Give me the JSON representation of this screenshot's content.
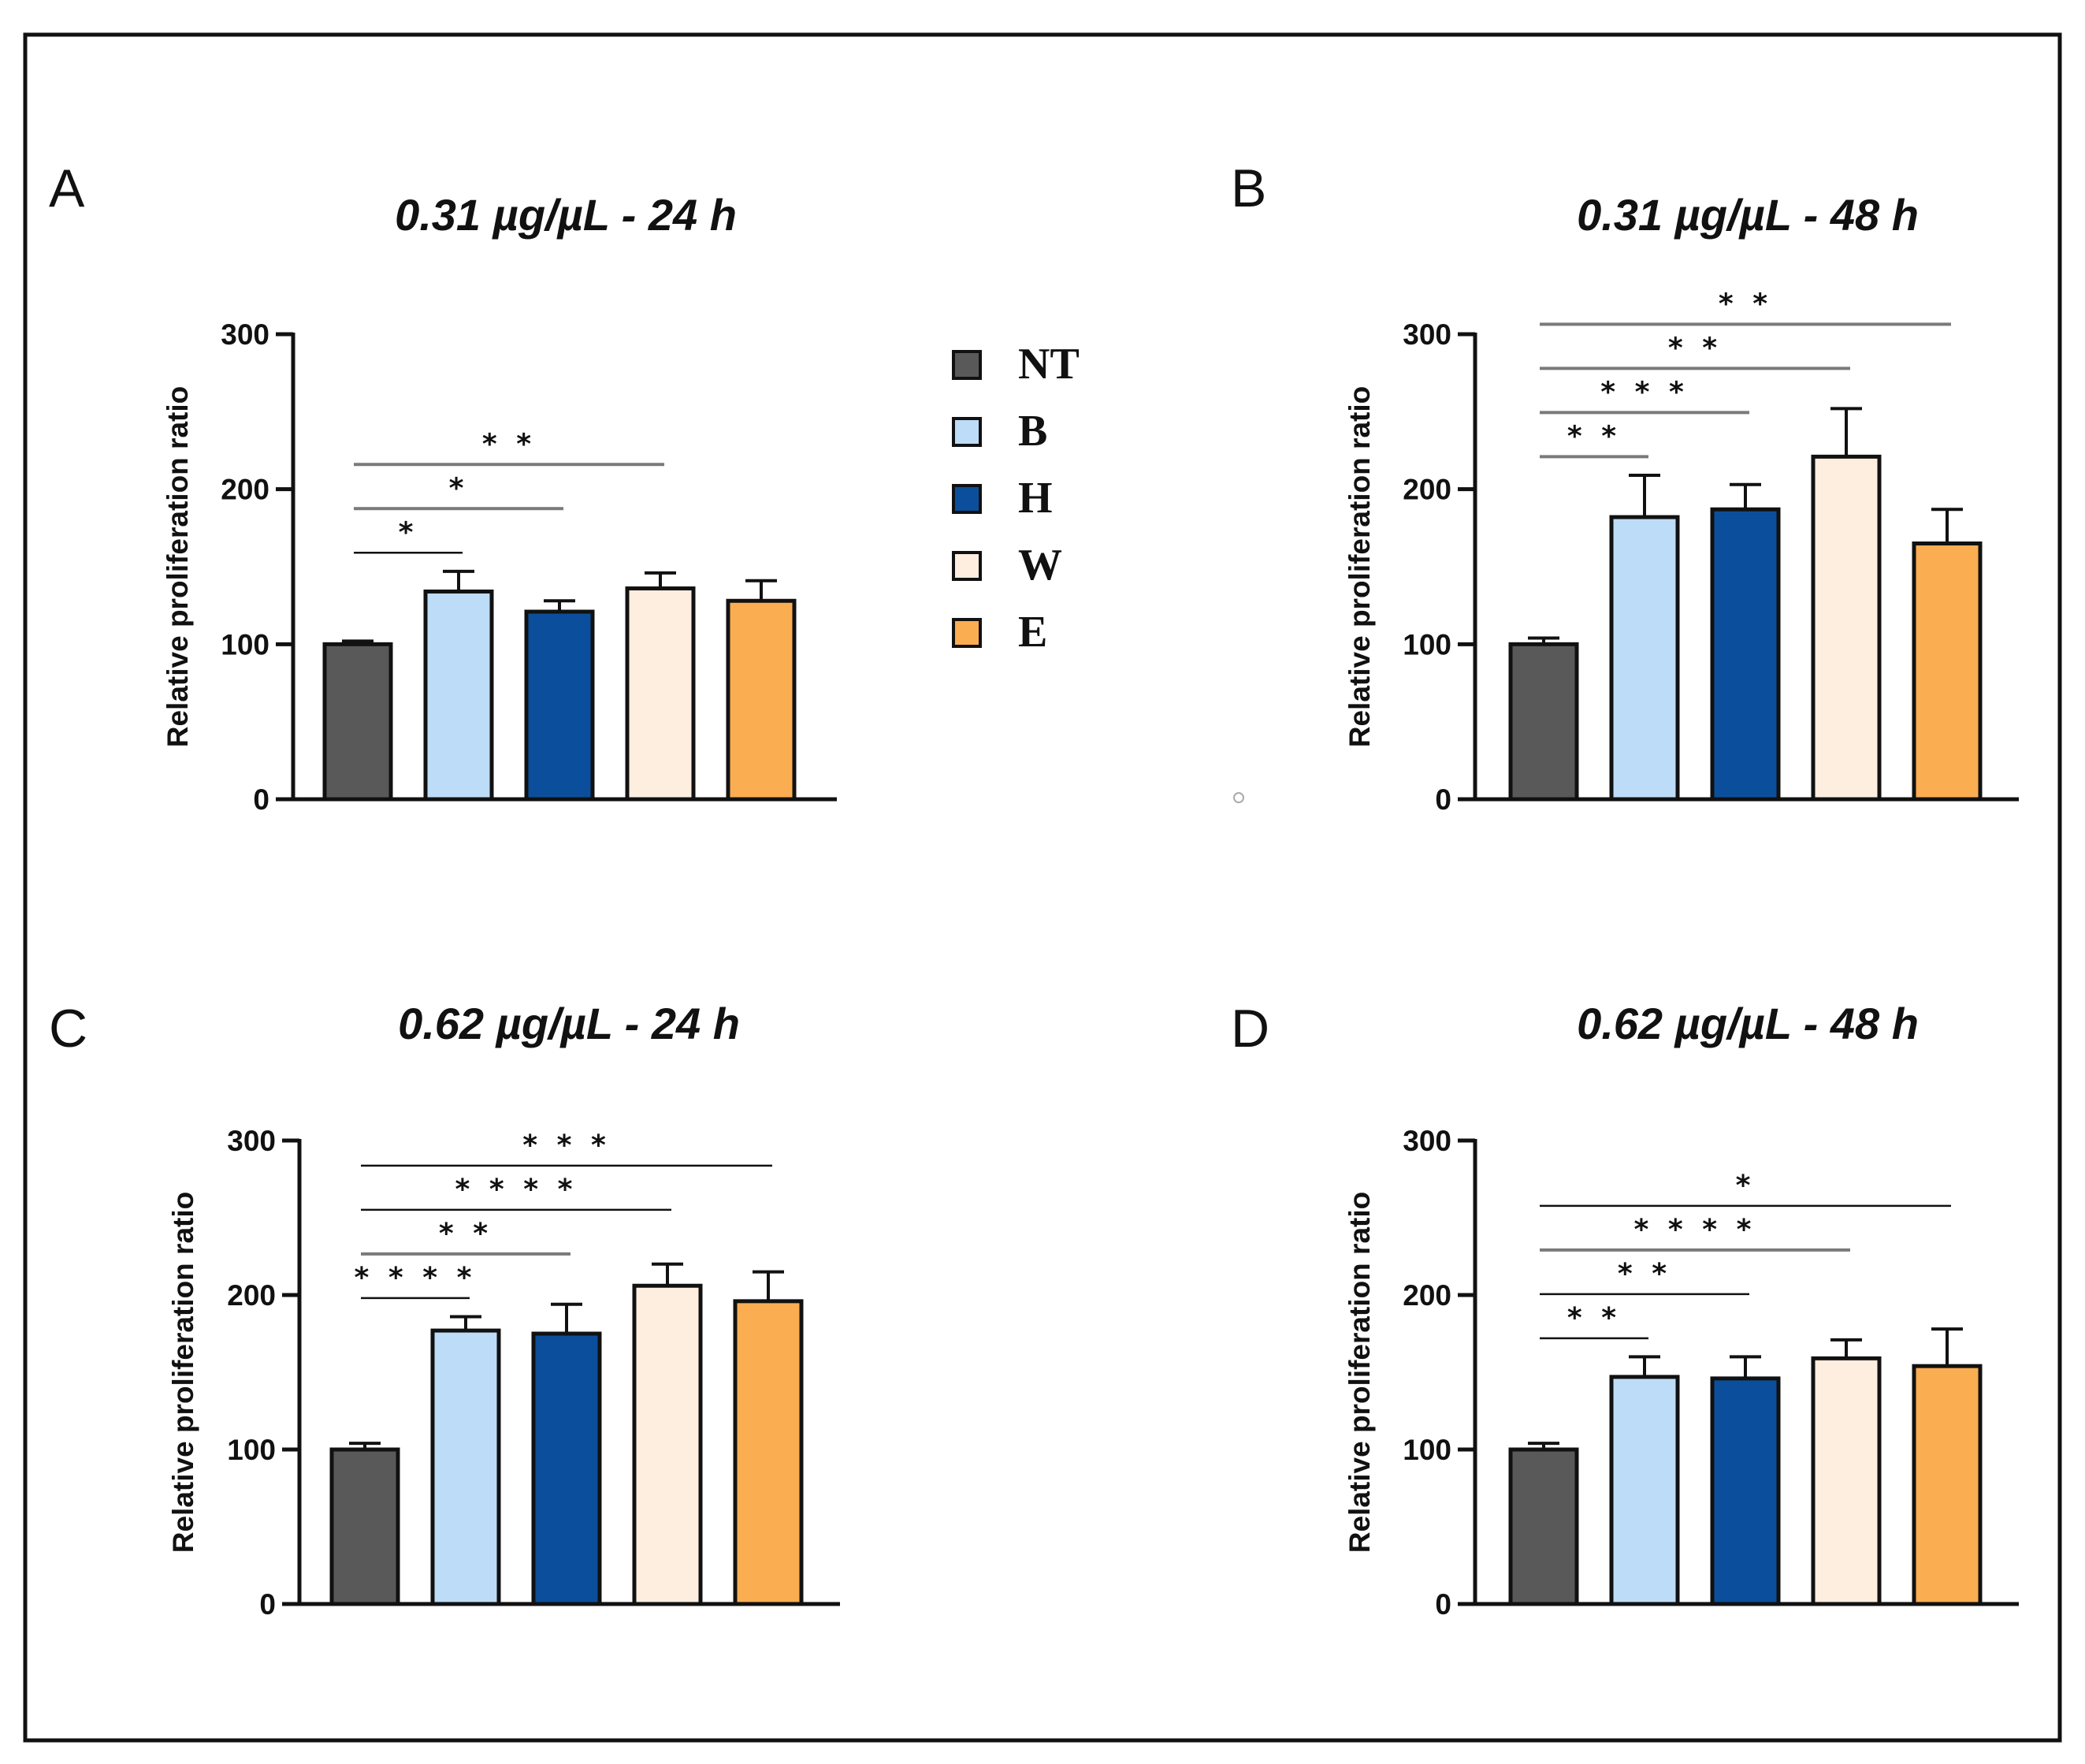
{
  "figure": {
    "legend": [
      {
        "label": "NT",
        "color": "#595959"
      },
      {
        "label": "B",
        "color": "#bddcf7"
      },
      {
        "label": "H",
        "color": "#0b4f9c"
      },
      {
        "label": "W",
        "color": "#fdeee0"
      },
      {
        "label": "E",
        "color": "#fbad52"
      }
    ]
  },
  "chart_data": [
    {
      "panel": "A",
      "type": "bar",
      "title": "0.31 µg/µL - 24 h",
      "ylabel": "Relative proliferation ratio",
      "categories": [
        "NT",
        "B",
        "H",
        "W",
        "E"
      ],
      "values": [
        100,
        134,
        121,
        136,
        128
      ],
      "errors": [
        2,
        13,
        7,
        10,
        13
      ],
      "ylim": [
        0,
        300
      ],
      "yticks": [
        "0",
        "100",
        "200",
        "300"
      ],
      "significance": [
        {
          "from": "NT",
          "to": "B",
          "label": "*",
          "gray": false
        },
        {
          "from": "NT",
          "to": "H",
          "label": "*",
          "gray": true
        },
        {
          "from": "NT",
          "to": "W",
          "label": "**",
          "gray": true
        }
      ]
    },
    {
      "panel": "B",
      "type": "bar",
      "title": "0.31 µg/µL - 48 h",
      "ylabel": "Relative proliferation ratio",
      "categories": [
        "NT",
        "B",
        "H",
        "W",
        "E"
      ],
      "values": [
        100,
        182,
        187,
        221,
        165
      ],
      "errors": [
        4,
        27,
        16,
        31,
        22
      ],
      "ylim": [
        0,
        300
      ],
      "yticks": [
        "0",
        "100",
        "200",
        "300"
      ],
      "significance": [
        {
          "from": "NT",
          "to": "B",
          "label": "**",
          "gray": true
        },
        {
          "from": "NT",
          "to": "H",
          "label": "***",
          "gray": true
        },
        {
          "from": "NT",
          "to": "W",
          "label": "**",
          "gray": true
        },
        {
          "from": "NT",
          "to": "E",
          "label": "**",
          "gray": true
        }
      ]
    },
    {
      "panel": "C",
      "type": "bar",
      "title": "0.62 µg/µL - 24 h",
      "ylabel": "Relative proliferation ratio",
      "categories": [
        "NT",
        "B",
        "H",
        "W",
        "E"
      ],
      "values": [
        100,
        177,
        175,
        206,
        196
      ],
      "errors": [
        4,
        9,
        19,
        14,
        19
      ],
      "ylim": [
        0,
        300
      ],
      "yticks": [
        "0",
        "100",
        "200",
        "300"
      ],
      "significance": [
        {
          "from": "NT",
          "to": "B",
          "label": "****",
          "gray": false
        },
        {
          "from": "NT",
          "to": "H",
          "label": "**",
          "gray": true
        },
        {
          "from": "NT",
          "to": "W",
          "label": "****",
          "gray": false
        },
        {
          "from": "NT",
          "to": "E",
          "label": "***",
          "gray": false
        }
      ]
    },
    {
      "panel": "D",
      "type": "bar",
      "title": "0.62 µg/µL - 48 h",
      "ylabel": "Relative proliferation ratio",
      "categories": [
        "NT",
        "B",
        "H",
        "W",
        "E"
      ],
      "values": [
        100,
        147,
        146,
        159,
        154
      ],
      "errors": [
        4,
        13,
        14,
        12,
        24
      ],
      "ylim": [
        0,
        300
      ],
      "yticks": [
        "0",
        "100",
        "200",
        "300"
      ],
      "significance": [
        {
          "from": "NT",
          "to": "B",
          "label": "**",
          "gray": false
        },
        {
          "from": "NT",
          "to": "H",
          "label": "**",
          "gray": false
        },
        {
          "from": "NT",
          "to": "W",
          "label": "****",
          "gray": true
        },
        {
          "from": "NT",
          "to": "E",
          "label": "*",
          "gray": false
        }
      ]
    }
  ]
}
